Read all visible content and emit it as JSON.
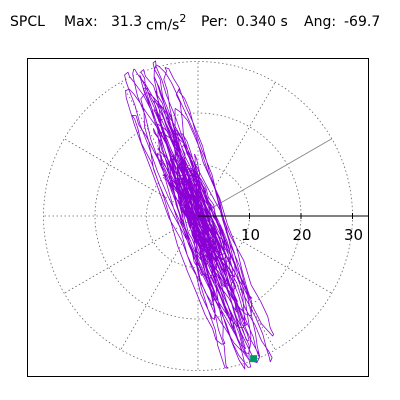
{
  "header": {
    "station": "SPCL",
    "max_label": "Max:",
    "max_value": "31.3",
    "max_unit": "cm/s",
    "max_unit_exp": "2",
    "period_label": "Per:",
    "period_value": "0.340 s",
    "angle_label": "Ang:",
    "angle_value": "-69.7"
  },
  "chart_data": {
    "type": "polar-orbit",
    "title": "",
    "units": "cm/s2",
    "max_amplitude": 31.3,
    "period_s": 0.34,
    "angle_deg": -69.7,
    "radial_ticks": [
      10,
      20,
      30
    ],
    "radial_tick_labels": [
      "10",
      "20",
      "30"
    ],
    "rings": [
      10,
      20,
      30
    ],
    "spokes_deg": [
      0,
      30,
      60,
      90,
      120,
      150,
      180,
      210,
      240,
      270,
      300,
      330
    ],
    "highlight_spoke_deg": 30,
    "grid": true,
    "orbit_color": "#8a00d4",
    "marker_color": "#009966",
    "marker_point": [
      10.8,
      -27.7
    ]
  }
}
